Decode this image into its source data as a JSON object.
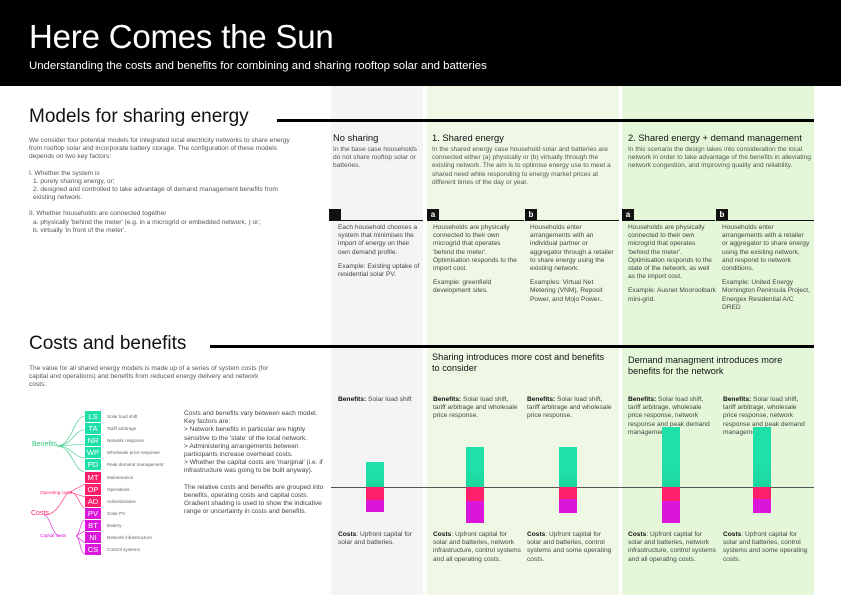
{
  "header": {
    "title": "Here Comes the Sun",
    "subtitle": "Understanding the costs and benefits for combining and sharing rooftop solar and batteries"
  },
  "models": {
    "title": "Models for sharing energy",
    "intro": {
      "p1": "We consider four potential models for integrated local electricity networks to share energy from rooftop solar and incorporate battery storage. The configuration of these models depends on two key factors:",
      "f1": "I. Whether the system is",
      "f1a": "1. purely sharing energy, or;",
      "f1b": "2. designed and controlled to take advantage of demand management benefits from existing network.",
      "f2": "II. Whether households are connected together",
      "f2a": "a. physically 'behind the meter' (e.g. in a microgrid or embedded network, ) or;",
      "f2b": "b. virtually 'in front of the meter'."
    },
    "columns": {
      "none": {
        "title": "No sharing",
        "desc": "In the base case households do not share rooftop solar or batteries.",
        "text1": "Each household chooses a system that minimises the import of energy on their own demand profile.",
        "text2": "Example: Existing uptake of residential solar PV."
      },
      "shared": {
        "title": "1. Shared energy",
        "desc": "In the shared energy case household solar and batteries are connected either (a) physically or (b) virtually through the existing network. The aim is to optimise energy use to meet a shared need while responding to energy market prices at different times of the day or year.",
        "a_tag": "a",
        "a_text1": "Households are physically connected to their own microgrid that operates 'behind the meter'. Optimisation responds to the import cost.",
        "a_text2": "Example: greenfield development sites.",
        "b_tag": "b",
        "b_text1": "Households enter arrangements with an individual partner or aggregator through a retailer to share energy using the existing network.",
        "b_text2": "Examples: Virtual Net Metering (VNM), Reposit Power, and Mojo Power.."
      },
      "demand": {
        "title": "2. Shared energy + demand management",
        "desc": "In this scenario the design takes into consideration the local network in order to take advantage of the benefits in alleviating network congestion, and improving quality and reliability.",
        "a_tag": "a",
        "a_text1": "Households are physically connected to their own microgrid that operates 'behind the meter'. Optimisation responds to the state of the network, as well as the import cost.",
        "a_text2": "Example: Ausnet Mooroolbark mini-grid.",
        "b_tag": "b",
        "b_text1": "Households enter arrangements with a retailer or aggregator to share energy using the existing network, and respond to network conditions.",
        "b_text2": "Example: United Energy Mornington Peninsula Project, Energex Residential A/C DRED"
      }
    }
  },
  "costs": {
    "title": "Costs and benefits",
    "intro": "The value for all shared energy models is made up of a series of system costs (for capital and operations) and benefits from reduced energy delivery and network costs.",
    "groups": {
      "benefits": "Benefits",
      "costs": "Costs",
      "operating": "Operating costs",
      "capital": "Capital costs"
    },
    "legend": [
      {
        "code": "LS",
        "label": "Solar load shift",
        "color": "#1fe0a8"
      },
      {
        "code": "TA",
        "label": "Tariff arbitrage",
        "color": "#1fe0a8"
      },
      {
        "code": "NR",
        "label": "Network response",
        "color": "#1fe0a8"
      },
      {
        "code": "WP",
        "label": "Wholesale price response",
        "color": "#1fe0a8"
      },
      {
        "code": "PD",
        "label": "Peak demand management",
        "color": "#1fe0a8"
      },
      {
        "code": "MT",
        "label": "Maintenance",
        "color": "#ff1f6b"
      },
      {
        "code": "OP",
        "label": "Operations",
        "color": "#ff1f6b"
      },
      {
        "code": "AD",
        "label": "Administrative",
        "color": "#ff1f6b"
      },
      {
        "code": "PV",
        "label": "Solar PV",
        "color": "#d916d9"
      },
      {
        "code": "BT",
        "label": "Battery",
        "color": "#d916d9"
      },
      {
        "code": "NI",
        "label": "Network infrastructure",
        "color": "#d916d9"
      },
      {
        "code": "CS",
        "label": "Control systems",
        "color": "#d916d9"
      }
    ],
    "factors": {
      "p1": "Costs and benefits vary between each model. Key factors are:",
      "p2": "> Network benefits in particular are highly sensitive to the 'state' of the local network.",
      "p3": "> Administering arrangements between participants increase overhead costs.",
      "p4": "> Whether the capital costs are 'marginal' (i.e. if infrastructure was going to be built anyway).",
      "p5": "The relative costs and benefits are grouped into benefits, operating costs and capital costs. Gradient shading is used to show the indicative range or uncertainty in costs and benefits."
    },
    "sub1": "Sharing introduces more cost and benefits to consider",
    "sub2": "Demand managment introduces more benefits for the network",
    "benefit_label": "Benefits:",
    "cost_label": "Costs",
    "scenarios": [
      {
        "benefits": " Solar load shift",
        "costs": ": Upfront capital for solar and batteries.",
        "benefit_level": 0.25,
        "operating_level": 0.13,
        "capital_level": 0.12
      },
      {
        "benefits": " Solar load shift, tariff arbitrage and wholesale price response.",
        "costs": ": Upfront capital for solar and batteries, network infrastructure, control systems and all operating costs.",
        "benefit_level": 0.4,
        "operating_level": 0.14,
        "capital_level": 0.22
      },
      {
        "benefits": " Solar load shift, tariff arbitrage and wholesale price response.",
        "costs": ": Upfront capital for solar and batteries, control systems and some operating costs.",
        "benefit_level": 0.4,
        "operating_level": 0.12,
        "capital_level": 0.14
      },
      {
        "benefits": " Solar load shift, tariff arbitrage, wholesale price response, network response and peak demand management",
        "costs": ": Upfront capital for solar and batteries, network infrastructure, control systems and all operating costs.",
        "benefit_level": 0.6,
        "operating_level": 0.14,
        "capital_level": 0.22
      },
      {
        "benefits": " Solar load shift, tariff arbitrage, wholesale price response, network response and peak demand management",
        "costs": ": Upfront capital for solar and batteries, control systems and some operating costs.",
        "benefit_level": 0.6,
        "operating_level": 0.12,
        "capital_level": 0.14
      }
    ]
  }
}
